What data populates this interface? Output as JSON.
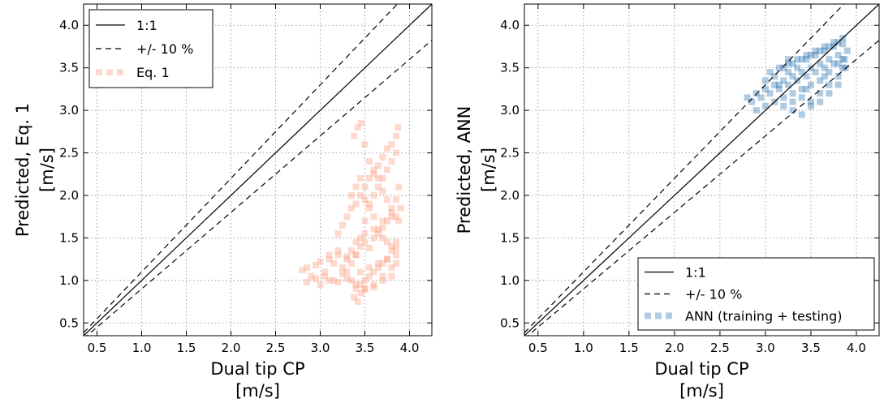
{
  "colors": {
    "eq1_points": "#fc9f7e",
    "ann_points": "#2f77b3",
    "lines": "#000000"
  },
  "chart_data": [
    {
      "type": "scatter",
      "panel": "left",
      "xlabel_lines": [
        "Dual tip CP",
        "[m/s]"
      ],
      "ylabel_lines": [
        "Predicted, Eq. 1",
        "[m/s]"
      ],
      "xlim": [
        0.35,
        4.25
      ],
      "ylim": [
        0.35,
        4.25
      ],
      "xticks": [
        0.5,
        1.0,
        1.5,
        2.0,
        2.5,
        3.0,
        3.5,
        4.0
      ],
      "yticks": [
        0.5,
        1.0,
        1.5,
        2.0,
        2.5,
        3.0,
        3.5,
        4.0
      ],
      "xtick_labels": [
        "0.5",
        "1.0",
        "1.5",
        "2.0",
        "2.5",
        "3.0",
        "3.5",
        "4.0"
      ],
      "ytick_labels": [
        "0.5",
        "1.0",
        "1.5",
        "2.0",
        "2.5",
        "3.0",
        "3.5",
        "4.0"
      ],
      "grid": true,
      "legend": {
        "location": "upper-left",
        "entries": [
          "1:1",
          "+/- 10 %",
          "Eq. 1"
        ]
      },
      "series": [
        {
          "name": "1:1",
          "kind": "line",
          "style": "solid",
          "slope": 1.0
        },
        {
          "name": "+/- 10 %",
          "kind": "line",
          "style": "dashed",
          "slopes": [
            1.1,
            0.9
          ]
        },
        {
          "name": "Eq. 1",
          "kind": "points",
          "x": [
            2.8,
            2.85,
            2.9,
            2.95,
            3.0,
            3.05,
            3.1,
            3.15,
            3.2,
            3.25,
            3.3,
            3.35,
            3.4,
            3.45,
            3.5,
            3.55,
            3.6,
            3.65,
            3.7,
            3.75,
            3.8,
            3.85,
            3.88,
            2.85,
            2.95,
            3.05,
            3.15,
            3.25,
            3.35,
            3.45,
            3.55,
            3.65,
            3.75,
            3.85,
            3.2,
            3.25,
            3.3,
            3.35,
            3.4,
            3.45,
            3.5,
            3.55,
            3.6,
            3.65,
            3.7,
            3.75,
            3.8,
            3.85,
            3.87,
            3.3,
            3.35,
            3.4,
            3.45,
            3.5,
            3.55,
            3.6,
            3.65,
            3.7,
            3.75,
            3.8,
            3.85,
            3.38,
            3.42,
            3.46,
            3.5,
            3.55,
            3.6,
            3.65,
            3.7,
            3.75,
            3.8,
            3.85,
            3.88,
            3.4,
            3.45,
            3.5,
            3.55,
            3.6,
            3.65,
            3.7,
            3.75,
            3.8,
            3.85,
            3.35,
            3.4,
            3.45,
            3.5,
            3.55,
            3.6,
            3.65,
            3.7,
            3.75,
            3.8,
            3.85,
            3.0,
            3.1,
            3.2,
            3.3,
            3.4,
            3.5,
            3.6,
            3.7,
            3.8,
            3.38,
            3.42,
            3.46,
            3.5,
            3.6,
            3.7,
            3.8,
            3.85,
            3.1,
            3.2,
            3.3,
            3.4,
            3.5,
            3.6,
            3.7,
            3.8,
            3.9
          ],
          "y": [
            1.12,
            1.15,
            1.05,
            1.18,
            1.22,
            1.1,
            1.25,
            1.2,
            1.3,
            1.15,
            1.28,
            1.35,
            1.3,
            1.4,
            1.45,
            1.38,
            1.5,
            1.55,
            1.62,
            1.7,
            1.8,
            1.95,
            2.1,
            0.98,
            1.02,
            1.05,
            1.0,
            1.08,
            1.0,
            1.1,
            1.15,
            1.2,
            1.25,
            1.3,
            1.55,
            1.65,
            1.75,
            1.85,
            1.9,
            2.0,
            2.1,
            2.2,
            2.25,
            2.35,
            2.45,
            2.55,
            2.6,
            2.7,
            2.8,
            1.1,
            1.2,
            1.3,
            1.5,
            1.7,
            1.9,
            2.0,
            2.1,
            2.2,
            2.3,
            2.4,
            2.5,
            2.7,
            2.8,
            2.85,
            2.6,
            2.4,
            2.3,
            2.2,
            2.05,
            1.95,
            1.85,
            1.75,
            1.7,
            0.9,
            0.95,
            1.0,
            1.05,
            1.1,
            1.15,
            1.2,
            1.25,
            1.35,
            1.45,
            2.0,
            2.1,
            2.2,
            1.95,
            1.85,
            1.75,
            1.6,
            1.5,
            1.45,
            1.4,
            1.38,
            0.95,
            1.0,
            0.98,
            1.02,
            0.95,
            0.9,
            0.92,
            1.0,
            1.05,
            0.8,
            0.75,
            0.85,
            0.9,
            0.95,
            1.05,
            1.15,
            1.2,
            1.3,
            1.35,
            1.25,
            1.45,
            1.55,
            1.6,
            1.7,
            1.75,
            1.85
          ]
        }
      ]
    },
    {
      "type": "scatter",
      "panel": "right",
      "xlabel_lines": [
        "Dual tip CP",
        "[m/s]"
      ],
      "ylabel_lines": [
        "Predicted, ANN",
        "[m/s]"
      ],
      "xlim": [
        0.35,
        4.25
      ],
      "ylim": [
        0.35,
        4.25
      ],
      "xticks": [
        0.5,
        1.0,
        1.5,
        2.0,
        2.5,
        3.0,
        3.5,
        4.0
      ],
      "yticks": [
        0.5,
        1.0,
        1.5,
        2.0,
        2.5,
        3.0,
        3.5,
        4.0
      ],
      "xtick_labels": [
        "0.5",
        "1.0",
        "1.5",
        "2.0",
        "2.5",
        "3.0",
        "3.5",
        "4.0"
      ],
      "ytick_labels": [
        "0.5",
        "1.0",
        "1.5",
        "2.0",
        "2.5",
        "3.0",
        "3.5",
        "4.0"
      ],
      "grid": true,
      "legend": {
        "location": "lower-right",
        "entries": [
          "1:1",
          "+/- 10 %",
          "ANN (training + testing)"
        ]
      },
      "series": [
        {
          "name": "1:1",
          "kind": "line",
          "style": "solid",
          "slope": 1.0
        },
        {
          "name": "+/- 10 %",
          "kind": "line",
          "style": "dashed",
          "slopes": [
            1.1,
            0.9
          ]
        },
        {
          "name": "ANN (training + testing)",
          "kind": "points",
          "x": [
            2.8,
            2.85,
            2.9,
            2.95,
            3.0,
            3.05,
            3.1,
            3.15,
            3.2,
            3.25,
            3.3,
            3.35,
            3.4,
            3.45,
            3.5,
            3.55,
            3.6,
            3.65,
            3.7,
            3.75,
            3.8,
            3.85,
            3.9,
            2.9,
            3.0,
            3.1,
            3.2,
            3.3,
            3.4,
            3.5,
            3.6,
            3.7,
            3.8,
            3.88,
            3.05,
            3.15,
            3.25,
            3.35,
            3.45,
            3.55,
            3.65,
            3.75,
            3.85,
            3.2,
            3.3,
            3.4,
            3.5,
            3.6,
            3.7,
            3.8,
            3.87,
            3.0,
            3.1,
            3.2,
            3.3,
            3.4,
            3.5,
            3.6,
            3.7,
            3.8,
            3.15,
            3.25,
            3.35,
            3.45,
            3.55,
            3.65,
            3.75,
            3.85,
            3.3,
            3.4,
            3.5,
            3.6,
            3.7,
            3.8,
            3.25,
            3.45,
            3.65,
            3.85
          ],
          "y": [
            3.15,
            3.1,
            3.2,
            3.15,
            3.25,
            3.2,
            3.3,
            3.25,
            3.35,
            3.3,
            3.4,
            3.35,
            3.45,
            3.4,
            3.5,
            3.45,
            3.55,
            3.5,
            3.6,
            3.55,
            3.65,
            3.6,
            3.7,
            3.0,
            3.05,
            3.1,
            3.05,
            3.1,
            3.15,
            3.1,
            3.2,
            3.3,
            3.4,
            3.5,
            3.45,
            3.5,
            3.55,
            3.6,
            3.65,
            3.7,
            3.75,
            3.8,
            3.85,
            3.15,
            3.2,
            3.25,
            3.3,
            3.35,
            3.45,
            3.55,
            3.6,
            3.35,
            3.4,
            3.5,
            3.55,
            3.6,
            3.65,
            3.7,
            3.75,
            3.8,
            3.3,
            3.45,
            3.5,
            3.6,
            3.65,
            3.7,
            3.75,
            3.78,
            3.0,
            2.95,
            3.05,
            3.1,
            3.2,
            3.3,
            3.6,
            3.25,
            3.4,
            3.5
          ]
        }
      ]
    }
  ]
}
